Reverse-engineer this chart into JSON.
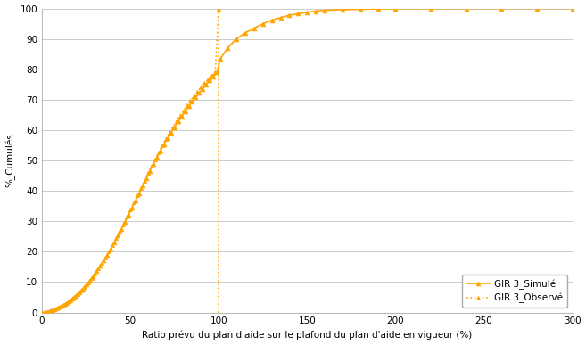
{
  "xlabel": "Ratio prévu du plan d'aide sur le plafond du plan d'aide en vigueur (%)",
  "ylabel": "%_Cumulés",
  "xlim": [
    0,
    300
  ],
  "ylim": [
    0,
    100
  ],
  "xticks": [
    0,
    50,
    100,
    150,
    200,
    250,
    300
  ],
  "yticks": [
    0,
    10,
    20,
    30,
    40,
    50,
    60,
    70,
    80,
    90,
    100
  ],
  "line_color": "#FFA500",
  "background_color": "#ffffff",
  "legend_simule": "GIR 3_Simulé",
  "legend_observe": "GIR 3_Observé",
  "vertical_line_x": 100,
  "simule_x": [
    0,
    3,
    5,
    7,
    9,
    11,
    13,
    15,
    17,
    19,
    21,
    23,
    25,
    27,
    29,
    31,
    33,
    35,
    37,
    39,
    41,
    43,
    45,
    47,
    49,
    51,
    53,
    55,
    57,
    59,
    61,
    63,
    65,
    67,
    69,
    71,
    73,
    75,
    77,
    79,
    81,
    83,
    85,
    87,
    89,
    91,
    93,
    95,
    97,
    99,
    101,
    105,
    110,
    115,
    120,
    125,
    130,
    135,
    140,
    145,
    150,
    155,
    160,
    170,
    180,
    190,
    200,
    220,
    240,
    260,
    280,
    300
  ],
  "simule_y": [
    0,
    0.3,
    0.6,
    1.0,
    1.5,
    2.1,
    2.8,
    3.6,
    4.5,
    5.5,
    6.6,
    7.8,
    9.1,
    10.5,
    12.0,
    13.6,
    15.3,
    17.1,
    19.0,
    21.0,
    23.1,
    25.3,
    27.5,
    29.8,
    32.1,
    34.5,
    36.9,
    39.3,
    41.7,
    44.1,
    46.5,
    48.8,
    51.0,
    53.2,
    55.3,
    57.3,
    59.2,
    61.0,
    62.8,
    64.5,
    66.2,
    67.8,
    69.3,
    70.8,
    72.2,
    73.6,
    75.0,
    76.3,
    77.6,
    79.0,
    83.5,
    87.0,
    90.0,
    92.0,
    93.5,
    95.0,
    96.2,
    97.0,
    97.8,
    98.3,
    98.8,
    99.1,
    99.4,
    99.6,
    99.75,
    99.85,
    99.92,
    99.97,
    99.99,
    100,
    100,
    100
  ],
  "observe_x": [
    2,
    4,
    6,
    8,
    10,
    12,
    14,
    16,
    18,
    20,
    22,
    24,
    26,
    28,
    30,
    32,
    34,
    36,
    38,
    40,
    42,
    44,
    46,
    48,
    50,
    52,
    54,
    56,
    58,
    60,
    62,
    64,
    66,
    68,
    70,
    72,
    74,
    76,
    78,
    80,
    82,
    84,
    86,
    88,
    90,
    92,
    94,
    96,
    98,
    100
  ],
  "observe_y": [
    0.2,
    0.5,
    0.8,
    1.2,
    1.8,
    2.4,
    3.2,
    4.0,
    5.0,
    6.1,
    7.3,
    8.5,
    9.8,
    11.2,
    12.8,
    14.5,
    16.2,
    18.1,
    20.1,
    22.2,
    24.4,
    26.7,
    29.0,
    31.4,
    33.8,
    36.2,
    38.6,
    41.0,
    43.4,
    45.8,
    48.2,
    50.4,
    52.7,
    54.9,
    57.1,
    59.1,
    61.0,
    62.9,
    64.7,
    66.4,
    68.1,
    69.7,
    71.2,
    72.7,
    74.1,
    75.4,
    76.7,
    77.9,
    79.1,
    100
  ]
}
